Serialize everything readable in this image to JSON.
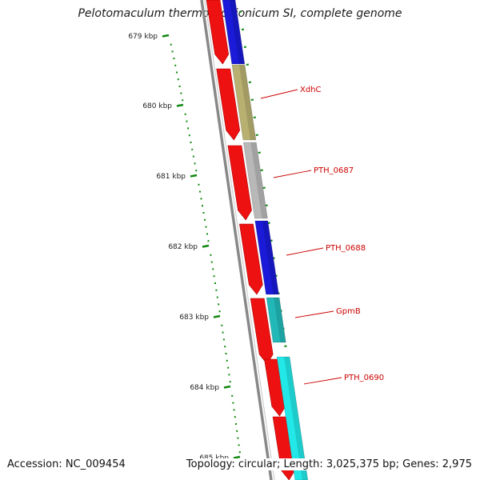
{
  "title": "Pelotomaculum thermopropionicum SI, complete genome",
  "footer": {
    "accession": "Accession: NC_009454",
    "info": "Topology: circular; Length: 3,025,375 bp; Genes: 2,975"
  },
  "axis": {
    "unit": "kbp",
    "ticks": [
      {
        "label": "679 kbp",
        "kbp": 679
      },
      {
        "label": "680 kbp",
        "kbp": 680
      },
      {
        "label": "681 kbp",
        "kbp": 681
      },
      {
        "label": "682 kbp",
        "kbp": 682
      },
      {
        "label": "683 kbp",
        "kbp": 683
      },
      {
        "label": "684 kbp",
        "kbp": 684
      },
      {
        "label": "685 kbp",
        "kbp": 685
      }
    ]
  },
  "genes": [
    {
      "name": "XdhC",
      "color": "#b8b070"
    },
    {
      "name": "PTH_0687",
      "color": "#b8b8b8"
    },
    {
      "name": "PTH_0688",
      "color": "#1a1ad8"
    },
    {
      "name": "GpmB",
      "color": "#22b8b8"
    },
    {
      "name": "PTH_0690",
      "color": "#22e8e8"
    }
  ],
  "colors": {
    "cds_arrow": "#ee1111",
    "backbone": "#888888",
    "tick": "#118811",
    "label": "#cc0000",
    "top_gene": "#1a1ad8"
  }
}
